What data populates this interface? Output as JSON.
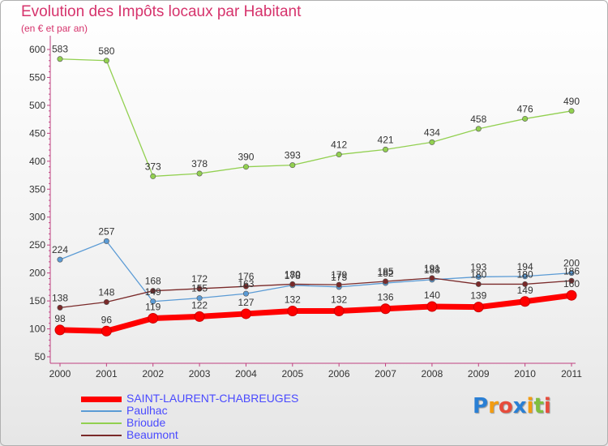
{
  "title": "Evolution des Impôts locaux par Habitant",
  "subtitle": "(en € et par an)",
  "logo": {
    "text": "Proxiti",
    "letters": [
      "P",
      "r",
      "o",
      "x",
      "i",
      "t",
      "i"
    ],
    "colors": [
      "#2a7fd4",
      "#f39c12",
      "#e74c3c",
      "#2a7fd4",
      "#f39c12",
      "#7fbf3f",
      "#e74c3c"
    ]
  },
  "chart_data": {
    "type": "line",
    "title": "Evolution des Impôts locaux par Habitant",
    "subtitle": "(en € et par an)",
    "xlabel": "",
    "ylabel": "",
    "ylim": [
      50,
      600
    ],
    "yticks": [
      50,
      100,
      150,
      200,
      250,
      300,
      350,
      400,
      450,
      500,
      550,
      600
    ],
    "x": [
      "2000",
      "2001",
      "2002",
      "2003",
      "2004",
      "2005",
      "2006",
      "2007",
      "2008",
      "2009",
      "2010",
      "2011"
    ],
    "grid": false,
    "legend_position": "bottom-left",
    "series": [
      {
        "name": "SAINT-LAURENT-CHABREUGES",
        "color": "#ff0000",
        "values": [
          98,
          96,
          119,
          122,
          127,
          132,
          132,
          136,
          140,
          139,
          149,
          160
        ],
        "labels": [
          "98",
          "96",
          "119",
          "122",
          "127",
          "132",
          "132",
          "136",
          "140",
          "139",
          "149",
          "160"
        ]
      },
      {
        "name": "Paulhac",
        "color": "#5b9bd5",
        "values": [
          224,
          257,
          149,
          155,
          163,
          178,
          175,
          182,
          188,
          193,
          194,
          200
        ],
        "labels": [
          "224",
          "257",
          "149",
          "155",
          "163",
          "178",
          "175",
          "182",
          "188",
          "193",
          "194",
          "200"
        ]
      },
      {
        "name": "Brioude",
        "color": "#92d050",
        "values": [
          583,
          580,
          373,
          378,
          390,
          393,
          412,
          421,
          434,
          458,
          476,
          490
        ],
        "labels": [
          "583",
          "580",
          "373",
          "378",
          "390",
          "393",
          "412",
          "421",
          "434",
          "458",
          "476",
          "490"
        ]
      },
      {
        "name": "Beaumont",
        "color": "#7a2a2a",
        "values": [
          138,
          148,
          168,
          172,
          176,
          180,
          179,
          185,
          191,
          180,
          180,
          186
        ],
        "labels": [
          "138",
          "148",
          "168",
          "172",
          "176",
          "180",
          "179",
          "185",
          "191",
          "180",
          "180",
          "186"
        ]
      }
    ]
  }
}
